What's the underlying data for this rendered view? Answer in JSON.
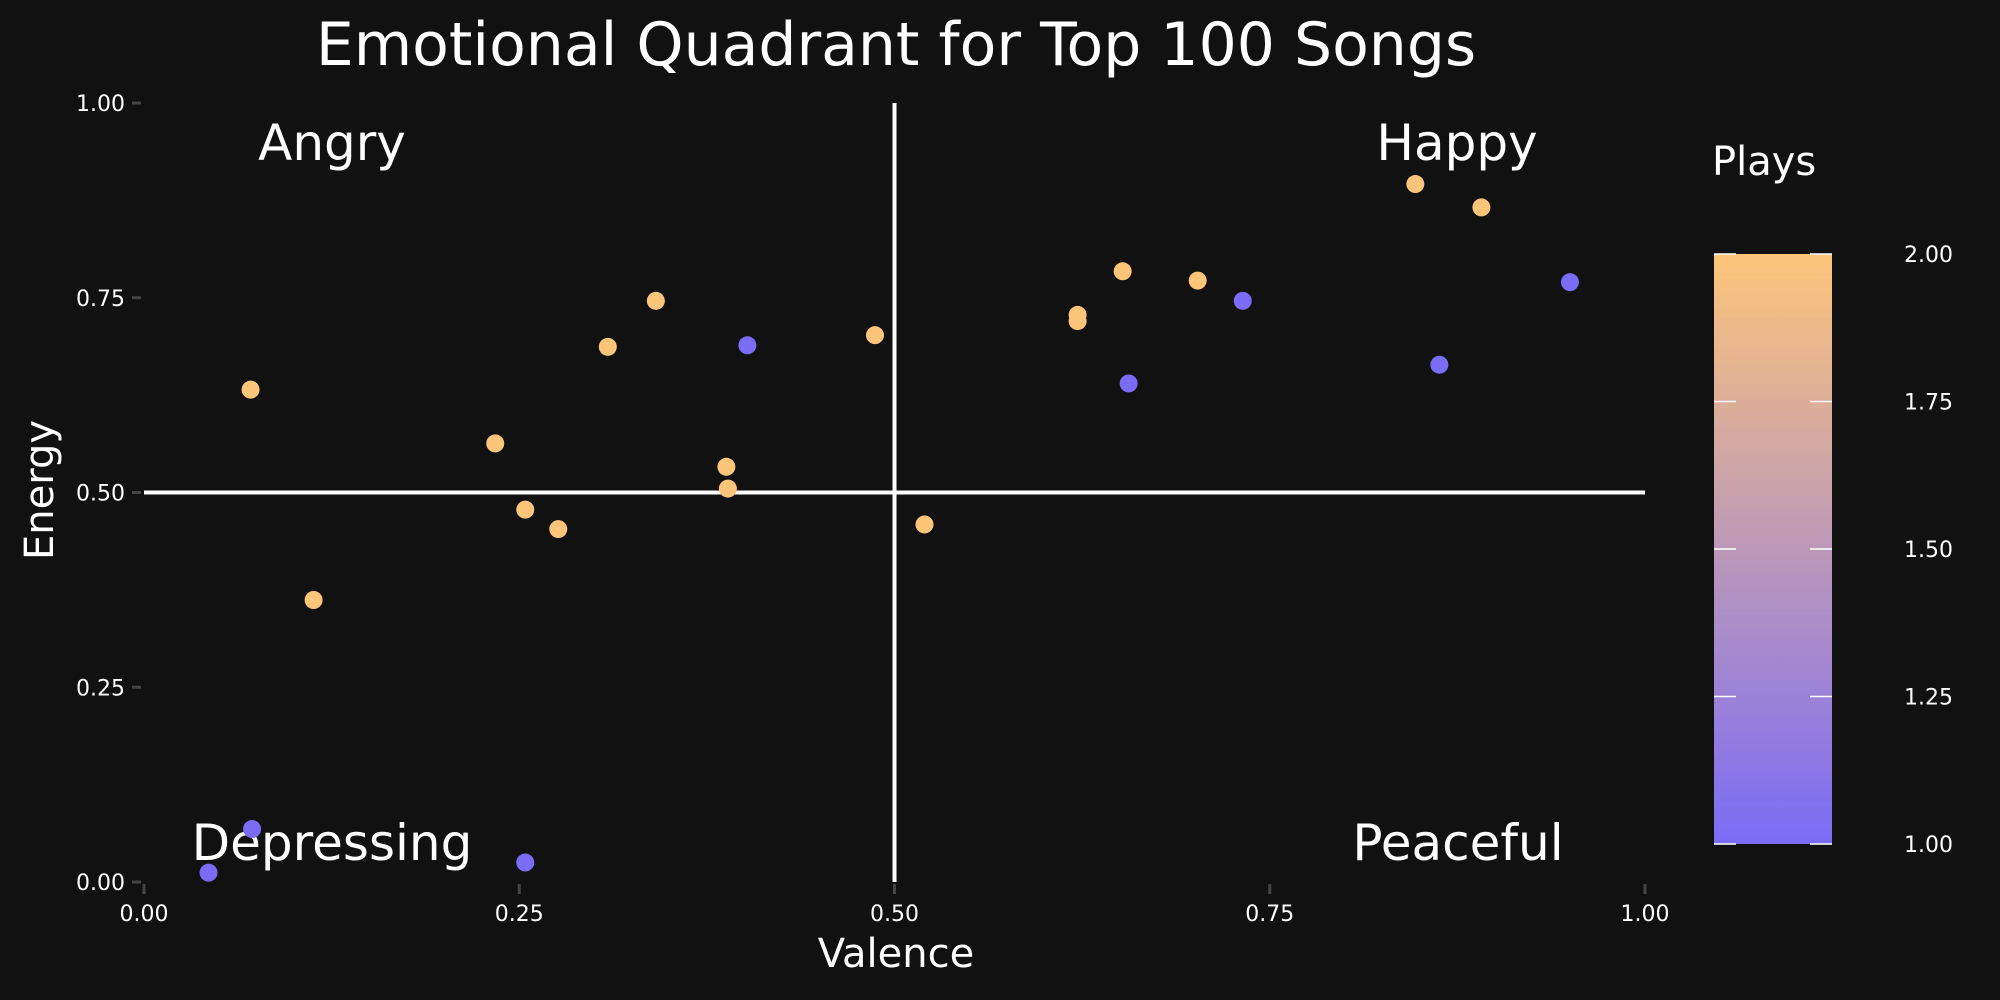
{
  "chart_data": {
    "type": "scatter",
    "title": "Emotional Quadrant for Top 100 Songs",
    "xlabel": "Valence",
    "ylabel": "Energy",
    "xlim": [
      0,
      1
    ],
    "ylim": [
      0,
      1
    ],
    "x_ticks": [
      "0.00",
      "0.25",
      "0.50",
      "0.75",
      "1.00"
    ],
    "y_ticks": [
      "0.00",
      "0.25",
      "0.50",
      "0.75",
      "1.00"
    ],
    "grid": false,
    "reference_lines": {
      "x": 0.5,
      "y": 0.5
    },
    "quadrant_labels": {
      "top_left": "Angry",
      "top_right": "Happy",
      "bottom_left": "Depressing",
      "bottom_right": "Peaceful"
    },
    "color_scale": {
      "title": "Plays",
      "min": 1.0,
      "max": 2.0,
      "low_color": "#7b6cf6",
      "high_color": "#fdc57a",
      "ticks": [
        "1.00",
        "1.25",
        "1.50",
        "1.75",
        "2.00"
      ],
      "legend_position": "right"
    },
    "points": [
      {
        "x": 0.071,
        "y": 0.632,
        "plays": 2
      },
      {
        "x": 0.113,
        "y": 0.362,
        "plays": 2
      },
      {
        "x": 0.234,
        "y": 0.563,
        "plays": 2
      },
      {
        "x": 0.254,
        "y": 0.478,
        "plays": 2
      },
      {
        "x": 0.276,
        "y": 0.453,
        "plays": 2
      },
      {
        "x": 0.309,
        "y": 0.687,
        "plays": 2
      },
      {
        "x": 0.341,
        "y": 0.746,
        "plays": 2
      },
      {
        "x": 0.388,
        "y": 0.533,
        "plays": 2
      },
      {
        "x": 0.389,
        "y": 0.505,
        "plays": 2
      },
      {
        "x": 0.487,
        "y": 0.702,
        "plays": 2
      },
      {
        "x": 0.52,
        "y": 0.459,
        "plays": 2
      },
      {
        "x": 0.622,
        "y": 0.728,
        "plays": 2
      },
      {
        "x": 0.622,
        "y": 0.72,
        "plays": 2
      },
      {
        "x": 0.652,
        "y": 0.784,
        "plays": 2
      },
      {
        "x": 0.702,
        "y": 0.772,
        "plays": 2
      },
      {
        "x": 0.847,
        "y": 0.896,
        "plays": 2
      },
      {
        "x": 0.891,
        "y": 0.866,
        "plays": 2
      },
      {
        "x": 0.402,
        "y": 0.689,
        "plays": 1
      },
      {
        "x": 0.656,
        "y": 0.64,
        "plays": 1
      },
      {
        "x": 0.732,
        "y": 0.746,
        "plays": 1
      },
      {
        "x": 0.863,
        "y": 0.664,
        "plays": 1
      },
      {
        "x": 0.95,
        "y": 0.77,
        "plays": 1
      },
      {
        "x": 0.072,
        "y": 0.068,
        "plays": 1
      },
      {
        "x": 0.043,
        "y": 0.012,
        "plays": 1
      },
      {
        "x": 0.254,
        "y": 0.025,
        "plays": 1
      }
    ]
  }
}
